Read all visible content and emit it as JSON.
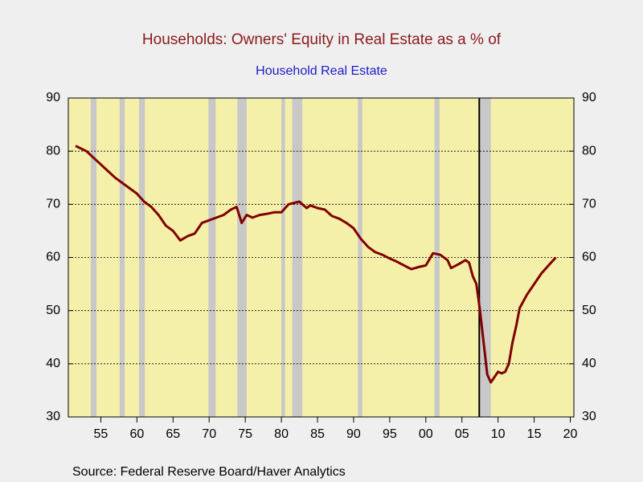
{
  "chart_data": {
    "type": "line",
    "title": "Households: Owners' Equity in Real Estate as a % of",
    "subtitle": "Household Real Estate",
    "source": "Source:  Federal Reserve Board/Haver Analytics",
    "series": [
      {
        "color": "#800000",
        "x": [
          1951.5,
          1953,
          1955,
          1957,
          1959,
          1960,
          1961,
          1962,
          1963,
          1964,
          1965,
          1966,
          1967,
          1968,
          1969,
          1970,
          1971,
          1972,
          1973,
          1973.8,
          1974.5,
          1975.2,
          1976,
          1977,
          1978,
          1979,
          1980,
          1981,
          1982.5,
          1983.5,
          1984,
          1985,
          1986,
          1987,
          1988,
          1989,
          1990,
          1991,
          1992,
          1993,
          1994,
          1995,
          1996,
          1997,
          1998,
          1999,
          2000,
          2001,
          2002,
          2003,
          2003.5,
          2004.5,
          2005.5,
          2006,
          2006.5,
          2007,
          2007.5,
          2008,
          2008.5,
          2009,
          2009.5,
          2010,
          2010.5,
          2011,
          2011.5,
          2012,
          2012.5,
          2013,
          2014,
          2015,
          2016,
          2017,
          2018
        ],
        "values": [
          81,
          80,
          77.5,
          75,
          73,
          72,
          70.5,
          69.5,
          68,
          66,
          65,
          63.2,
          64,
          64.5,
          66.5,
          67,
          67.5,
          68,
          69,
          69.5,
          66.5,
          68,
          67.5,
          68,
          68.2,
          68.5,
          68.5,
          70,
          70.5,
          69.3,
          69.8,
          69.3,
          69,
          67.8,
          67.3,
          66.5,
          65.5,
          63.5,
          62,
          61,
          60.5,
          59.8,
          59.2,
          58.5,
          57.8,
          58.2,
          58.5,
          60.8,
          60.5,
          59.5,
          58,
          58.7,
          59.5,
          59,
          56.5,
          55,
          50,
          44,
          38,
          36.5,
          37.5,
          38.5,
          38.2,
          38.5,
          40,
          44,
          47,
          50.5,
          53,
          55,
          57,
          58.5,
          60
        ]
      }
    ],
    "recessions": [
      [
        1953.6,
        1954.4
      ],
      [
        1957.6,
        1958.3
      ],
      [
        1960.3,
        1961.1
      ],
      [
        1969.9,
        1970.9
      ],
      [
        1973.9,
        1975.2
      ],
      [
        1980.0,
        1980.5
      ],
      [
        1981.5,
        1982.9
      ],
      [
        1990.6,
        1991.2
      ],
      [
        2001.2,
        2001.9
      ],
      [
        2007.5,
        2009.0
      ]
    ],
    "recession_color": "#c8c8c8",
    "vline": 2007.4,
    "plot_background": "#f4f0a9",
    "xlim": [
      1950.5,
      2020.5
    ],
    "xticks": [
      {
        "value": 1955,
        "label": "55"
      },
      {
        "value": 1960,
        "label": "60"
      },
      {
        "value": 1965,
        "label": "65"
      },
      {
        "value": 1970,
        "label": "70"
      },
      {
        "value": 1975,
        "label": "75"
      },
      {
        "value": 1980,
        "label": "80"
      },
      {
        "value": 1985,
        "label": "85"
      },
      {
        "value": 1990,
        "label": "90"
      },
      {
        "value": 1995,
        "label": "95"
      },
      {
        "value": 2000,
        "label": "00"
      },
      {
        "value": 2005,
        "label": "05"
      },
      {
        "value": 2010,
        "label": "10"
      },
      {
        "value": 2015,
        "label": "15"
      },
      {
        "value": 2020,
        "label": "20"
      }
    ],
    "ylim": [
      30,
      90
    ],
    "yticks": [
      30,
      40,
      50,
      60,
      70,
      80,
      90
    ],
    "y2lim": [
      30,
      90
    ],
    "y2ticks": [
      30,
      40,
      50,
      60,
      70,
      80,
      90
    ],
    "grid": true
  }
}
